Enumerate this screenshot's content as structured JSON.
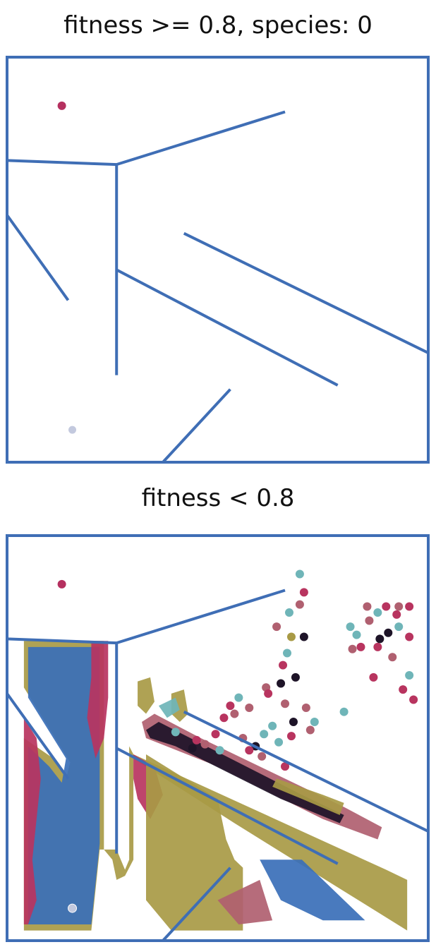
{
  "panels": [
    {
      "title": "fitness >= 0.8, species: 0"
    },
    {
      "title": "fitness < 0.8"
    }
  ],
  "colors": {
    "wall": "#3f6eb5",
    "goal": "#b5305f",
    "start": "#c3c9de",
    "species": [
      "#b8345f",
      "#a89a45",
      "#3a6fb8",
      "#6fb5b8",
      "#b06070",
      "#1e1428"
    ]
  },
  "chart_data": {
    "type": "scatter",
    "maze": {
      "xlim": [
        0,
        200
      ],
      "ylim": [
        0,
        200
      ],
      "walls": [
        [
          [
            0,
            149
          ],
          [
            52,
            147
          ]
        ],
        [
          [
            52,
            147
          ],
          [
            132,
            173
          ]
        ],
        [
          [
            52,
            147
          ],
          [
            52,
            43
          ]
        ],
        [
          [
            0,
            122
          ],
          [
            29,
            80
          ]
        ],
        [
          [
            52,
            95
          ],
          [
            157,
            38
          ]
        ],
        [
          [
            84,
            113
          ],
          [
            200,
            54
          ]
        ],
        [
          [
            106,
            36
          ],
          [
            74,
            0
          ]
        ]
      ],
      "goal": [
        26,
        176
      ],
      "start": [
        31,
        16
      ]
    },
    "panels": [
      {
        "title": "fitness >= 0.8, species: 0",
        "points": []
      },
      {
        "title": "fitness < 0.8",
        "points": [
          [
            139,
            181,
            3
          ],
          [
            141,
            172,
            0
          ],
          [
            139,
            166,
            4
          ],
          [
            134,
            162,
            3
          ],
          [
            128,
            155,
            4
          ],
          [
            135,
            150,
            1
          ],
          [
            141,
            150,
            5
          ],
          [
            133,
            142,
            3
          ],
          [
            131,
            136,
            0
          ],
          [
            137,
            130,
            5
          ],
          [
            123,
            125,
            4
          ],
          [
            110,
            120,
            3
          ],
          [
            106,
            116,
            0
          ],
          [
            115,
            115,
            4
          ],
          [
            124,
            122,
            0
          ],
          [
            130,
            127,
            5
          ],
          [
            132,
            117,
            4
          ],
          [
            136,
            108,
            5
          ],
          [
            142,
            115,
            4
          ],
          [
            146,
            108,
            3
          ],
          [
            144,
            104,
            4
          ],
          [
            135,
            101,
            0
          ],
          [
            126,
            106,
            3
          ],
          [
            112,
            100,
            4
          ],
          [
            118,
            96,
            5
          ],
          [
            129,
            98,
            3
          ],
          [
            121,
            91,
            4
          ],
          [
            115,
            94,
            0
          ],
          [
            122,
            102,
            3
          ],
          [
            99,
            102,
            0
          ],
          [
            94,
            97,
            4
          ],
          [
            101,
            94,
            3
          ],
          [
            88,
            95,
            5
          ],
          [
            80,
            103,
            3
          ],
          [
            90,
            99,
            0
          ],
          [
            132,
            86,
            0
          ],
          [
            103,
            110,
            0
          ],
          [
            108,
            112,
            4
          ],
          [
            163,
            155,
            3
          ],
          [
            171,
            165,
            4
          ],
          [
            176,
            162,
            3
          ],
          [
            180,
            165,
            0
          ],
          [
            186,
            165,
            4
          ],
          [
            185,
            161,
            0
          ],
          [
            191,
            165,
            0
          ],
          [
            186,
            155,
            3
          ],
          [
            191,
            150,
            0
          ],
          [
            181,
            152,
            5
          ],
          [
            172,
            158,
            4
          ],
          [
            166,
            151,
            3
          ],
          [
            168,
            145,
            0
          ],
          [
            176,
            145,
            0
          ],
          [
            183,
            140,
            4
          ],
          [
            191,
            131,
            3
          ],
          [
            193,
            119,
            0
          ],
          [
            188,
            124,
            0
          ],
          [
            160,
            113,
            3
          ],
          [
            164,
            144,
            4
          ],
          [
            174,
            130,
            0
          ],
          [
            177,
            149,
            5
          ]
        ],
        "regions": [
          {
            "species": 1,
            "poly": [
              [
                8,
                148
              ],
              [
                46,
                148
              ],
              [
                46,
                45
              ],
              [
                50,
                40
              ],
              [
                52,
                30
              ],
              [
                56,
                32
              ],
              [
                60,
                40
              ],
              [
                60,
                90
              ],
              [
                108,
                58
              ],
              [
                190,
                5
              ],
              [
                190,
                30
              ],
              [
                180,
                35
              ],
              [
                60,
                92
              ],
              [
                58,
                96
              ],
              [
                58,
                40
              ],
              [
                56,
                35
              ],
              [
                54,
                40
              ],
              [
                52,
                45
              ],
              [
                44,
                45
              ],
              [
                40,
                5
              ],
              [
                8,
                5
              ],
              [
                8,
                100
              ],
              [
                22,
                90
              ],
              [
                28,
                80
              ],
              [
                30,
                88
              ],
              [
                8,
                125
              ]
            ]
          },
          {
            "species": 2,
            "poly": [
              [
                10,
                145
              ],
              [
                44,
                145
              ],
              [
                44,
                48
              ],
              [
                40,
                8
              ],
              [
                10,
                8
              ],
              [
                10,
                96
              ],
              [
                20,
                86
              ],
              [
                26,
                78
              ],
              [
                28,
                90
              ],
              [
                10,
                120
              ]
            ]
          },
          {
            "species": 0,
            "poly": [
              [
                8,
                110
              ],
              [
                14,
                100
              ],
              [
                16,
                80
              ],
              [
                14,
                60
              ],
              [
                12,
                40
              ],
              [
                14,
                20
              ],
              [
                10,
                8
              ],
              [
                8,
                8
              ]
            ]
          },
          {
            "species": 0,
            "poly": [
              [
                40,
                148
              ],
              [
                48,
                148
              ],
              [
                48,
                120
              ],
              [
                46,
                100
              ],
              [
                42,
                90
              ],
              [
                38,
                110
              ],
              [
                40,
                130
              ]
            ]
          },
          {
            "species": 0,
            "poly": [
              [
                60,
                92
              ],
              [
                70,
                86
              ],
              [
                74,
                72
              ],
              [
                68,
                60
              ],
              [
                62,
                70
              ],
              [
                60,
                80
              ]
            ]
          },
          {
            "species": 4,
            "poly": [
              [
                64,
                108
              ],
              [
                70,
                112
              ],
              [
                92,
                100
              ],
              [
                160,
                66
              ],
              [
                178,
                56
              ],
              [
                176,
                50
              ],
              [
                150,
                60
              ],
              [
                100,
                86
              ],
              [
                66,
                100
              ]
            ]
          },
          {
            "species": 5,
            "poly": [
              [
                66,
                104
              ],
              [
                72,
                108
              ],
              [
                140,
                72
              ],
              [
                160,
                62
              ],
              [
                158,
                58
              ],
              [
                130,
                70
              ],
              [
                80,
                96
              ],
              [
                68,
                100
              ]
            ]
          },
          {
            "species": 1,
            "poly": [
              [
                62,
                128
              ],
              [
                68,
                130
              ],
              [
                70,
                118
              ],
              [
                66,
                112
              ],
              [
                62,
                116
              ]
            ]
          },
          {
            "species": 1,
            "poly": [
              [
                78,
                122
              ],
              [
                84,
                124
              ],
              [
                86,
                112
              ],
              [
                82,
                108
              ],
              [
                78,
                112
              ]
            ]
          },
          {
            "species": 1,
            "poly": [
              [
                128,
                80
              ],
              [
                150,
                72
              ],
              [
                160,
                68
              ],
              [
                158,
                62
              ],
              [
                140,
                70
              ],
              [
                126,
                76
              ]
            ]
          },
          {
            "species": 3,
            "poly": [
              [
                72,
                116
              ],
              [
                80,
                120
              ],
              [
                82,
                114
              ],
              [
                76,
                110
              ]
            ]
          },
          {
            "species": 1,
            "poly": [
              [
                66,
                40
              ],
              [
                66,
                92
              ],
              [
                100,
                70
              ],
              [
                104,
                50
              ],
              [
                108,
                40
              ],
              [
                112,
                36
              ],
              [
                112,
                5
              ],
              [
                78,
                5
              ],
              [
                66,
                20
              ]
            ]
          },
          {
            "species": 2,
            "poly": [
              [
                120,
                40
              ],
              [
                140,
                40
              ],
              [
                150,
                30
              ],
              [
                160,
                20
              ],
              [
                170,
                10
              ],
              [
                150,
                10
              ],
              [
                130,
                20
              ]
            ]
          },
          {
            "species": 4,
            "poly": [
              [
                100,
                20
              ],
              [
                120,
                30
              ],
              [
                126,
                10
              ],
              [
                110,
                8
              ]
            ]
          }
        ]
      }
    ]
  }
}
